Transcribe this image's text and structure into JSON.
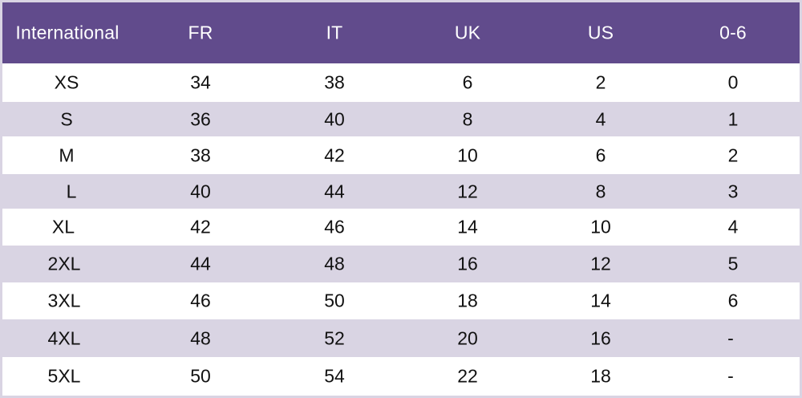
{
  "headers": [
    "International",
    "FR",
    "IT",
    "UK",
    "US",
    "0-6"
  ],
  "rows": [
    [
      "XS",
      "34",
      "38",
      "6",
      "2",
      "0"
    ],
    [
      "S",
      "36",
      "40",
      "8",
      "4",
      "1"
    ],
    [
      "M",
      "38",
      "42",
      "10",
      "6",
      "2"
    ],
    [
      "L",
      "40",
      "44",
      "12",
      "8",
      "3"
    ],
    [
      "XL",
      "42",
      "46",
      "14",
      "10",
      "4"
    ],
    [
      "2XL",
      "44",
      "48",
      "16",
      "12",
      "5"
    ],
    [
      "3XL",
      "46",
      "50",
      "18",
      "14",
      "6"
    ],
    [
      "4XL",
      "48",
      "52",
      "20",
      "16",
      "-"
    ],
    [
      "5XL",
      "50",
      "54",
      "22",
      "18",
      "-"
    ]
  ],
  "colors": {
    "header_bg": "#614b8c",
    "header_text": "#ffffff",
    "row_white": "#ffffff",
    "row_shade": "#d9d4e3",
    "body_text": "#111111"
  }
}
